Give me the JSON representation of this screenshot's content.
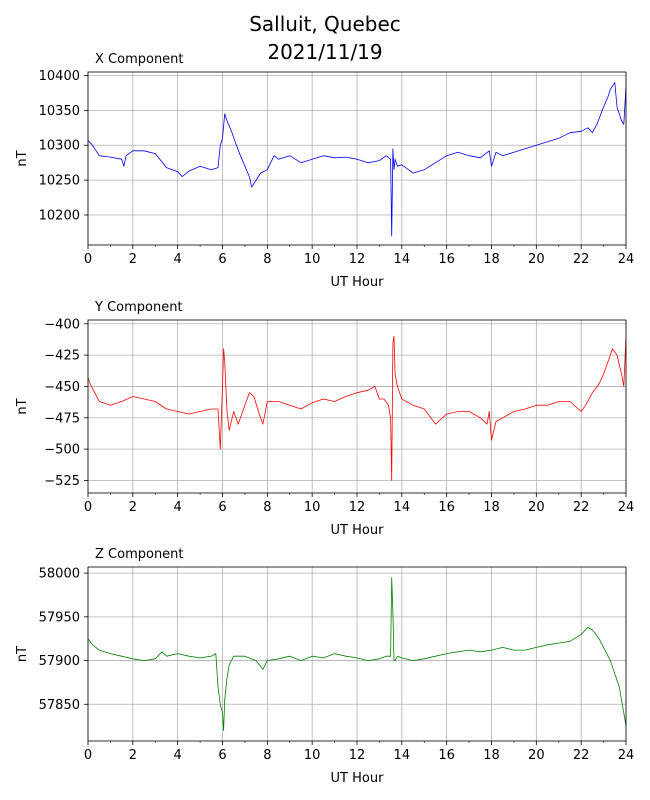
{
  "figure": {
    "title_line1": "Salluit, Quebec",
    "title_line2": "2021/11/19"
  },
  "chart_data": [
    {
      "type": "line",
      "title": "X Component",
      "xlabel": "UT Hour",
      "ylabel": "nT",
      "color": "#0000ff",
      "xlim": [
        0,
        24
      ],
      "ylim": [
        10157,
        10405
      ],
      "xticks": [
        0,
        2,
        4,
        6,
        8,
        10,
        12,
        14,
        16,
        18,
        20,
        22,
        24
      ],
      "yticks": [
        10200,
        10250,
        10300,
        10350,
        10400
      ],
      "grid": true,
      "x": [
        0,
        0.2,
        0.5,
        1.0,
        1.5,
        1.6,
        1.7,
        2.0,
        2.5,
        3.0,
        3.5,
        4.0,
        4.2,
        4.5,
        5.0,
        5.5,
        5.8,
        5.9,
        6.0,
        6.1,
        6.2,
        6.4,
        6.6,
        6.8,
        7.0,
        7.2,
        7.3,
        7.5,
        7.7,
        8.0,
        8.3,
        8.5,
        9.0,
        9.5,
        10.0,
        10.5,
        11.0,
        11.5,
        12.0,
        12.5,
        13.0,
        13.3,
        13.5,
        13.55,
        13.6,
        13.65,
        13.7,
        13.8,
        14.0,
        14.5,
        15.0,
        15.5,
        16.0,
        16.5,
        17.0,
        17.5,
        17.9,
        18.0,
        18.2,
        18.5,
        19.0,
        19.5,
        20.0,
        20.5,
        21.0,
        21.5,
        22.0,
        22.3,
        22.5,
        22.7,
        23.0,
        23.2,
        23.3,
        23.5,
        23.6,
        23.8,
        23.9,
        24.0
      ],
      "y": [
        10307,
        10300,
        10285,
        10283,
        10280,
        10270,
        10285,
        10292,
        10292,
        10288,
        10268,
        10262,
        10255,
        10263,
        10270,
        10265,
        10268,
        10300,
        10310,
        10345,
        10335,
        10320,
        10302,
        10285,
        10270,
        10255,
        10240,
        10250,
        10260,
        10265,
        10285,
        10280,
        10285,
        10275,
        10280,
        10285,
        10282,
        10283,
        10280,
        10275,
        10278,
        10285,
        10280,
        10170,
        10295,
        10265,
        10280,
        10270,
        10272,
        10260,
        10265,
        10275,
        10285,
        10290,
        10285,
        10282,
        10292,
        10270,
        10290,
        10285,
        10290,
        10295,
        10300,
        10305,
        10310,
        10318,
        10320,
        10325,
        10318,
        10330,
        10355,
        10370,
        10380,
        10390,
        10355,
        10335,
        10330,
        10385
      ]
    },
    {
      "type": "line",
      "title": "Y Component",
      "xlabel": "UT Hour",
      "ylabel": "nT",
      "color": "#ff0000",
      "xlim": [
        0,
        24
      ],
      "ylim": [
        -535,
        -397
      ],
      "xticks": [
        0,
        2,
        4,
        6,
        8,
        10,
        12,
        14,
        16,
        18,
        20,
        22,
        24
      ],
      "yticks": [
        -525,
        -500,
        -475,
        -450,
        -425,
        -400
      ],
      "grid": true,
      "x": [
        0,
        0.1,
        0.3,
        0.5,
        1.0,
        1.5,
        2.0,
        2.5,
        3.0,
        3.5,
        4.0,
        4.5,
        5.0,
        5.5,
        5.8,
        5.9,
        6.0,
        6.05,
        6.1,
        6.2,
        6.3,
        6.5,
        6.7,
        7.0,
        7.2,
        7.4,
        7.6,
        7.8,
        8.0,
        8.5,
        9.0,
        9.5,
        10.0,
        10.5,
        11.0,
        11.5,
        12.0,
        12.5,
        12.8,
        13.0,
        13.2,
        13.4,
        13.5,
        13.55,
        13.6,
        13.65,
        13.7,
        13.8,
        14.0,
        14.5,
        15.0,
        15.5,
        16.0,
        16.5,
        17.0,
        17.5,
        17.8,
        17.9,
        18.0,
        18.2,
        18.5,
        19.0,
        19.5,
        20.0,
        20.5,
        21.0,
        21.5,
        22.0,
        22.2,
        22.5,
        22.8,
        23.0,
        23.2,
        23.4,
        23.6,
        23.8,
        23.9,
        24.0
      ],
      "y": [
        -443,
        -448,
        -455,
        -462,
        -465,
        -462,
        -458,
        -460,
        -462,
        -468,
        -470,
        -472,
        -470,
        -468,
        -468,
        -500,
        -450,
        -420,
        -430,
        -470,
        -485,
        -470,
        -480,
        -465,
        -455,
        -458,
        -470,
        -480,
        -462,
        -462,
        -465,
        -468,
        -463,
        -460,
        -462,
        -458,
        -455,
        -453,
        -450,
        -460,
        -460,
        -465,
        -475,
        -525,
        -415,
        -410,
        -440,
        -450,
        -460,
        -465,
        -468,
        -480,
        -472,
        -470,
        -470,
        -475,
        -480,
        -470,
        -493,
        -478,
        -475,
        -470,
        -468,
        -465,
        -465,
        -462,
        -462,
        -470,
        -465,
        -455,
        -448,
        -440,
        -430,
        -420,
        -425,
        -440,
        -450,
        -410
      ]
    },
    {
      "type": "line",
      "title": "Z Component",
      "xlabel": "UT Hour",
      "ylabel": "nT",
      "color": "#008000",
      "xlim": [
        0,
        24
      ],
      "ylim": [
        57808,
        58007
      ],
      "xticks": [
        0,
        2,
        4,
        6,
        8,
        10,
        12,
        14,
        16,
        18,
        20,
        22,
        24
      ],
      "yticks": [
        57850,
        57900,
        57950,
        58000
      ],
      "grid": true,
      "x": [
        0,
        0.2,
        0.5,
        1.0,
        1.5,
        2.0,
        2.5,
        3.0,
        3.3,
        3.5,
        4.0,
        4.5,
        5.0,
        5.5,
        5.7,
        5.8,
        5.9,
        6.0,
        6.05,
        6.1,
        6.2,
        6.3,
        6.5,
        7.0,
        7.5,
        7.8,
        8.0,
        8.5,
        9.0,
        9.5,
        10.0,
        10.5,
        11.0,
        11.5,
        12.0,
        12.5,
        13.0,
        13.3,
        13.5,
        13.55,
        13.6,
        13.65,
        13.7,
        13.8,
        14.0,
        14.5,
        15.0,
        15.5,
        16.0,
        16.5,
        17.0,
        17.5,
        18.0,
        18.5,
        19.0,
        19.5,
        20.0,
        20.5,
        21.0,
        21.5,
        22.0,
        22.3,
        22.5,
        22.8,
        23.0,
        23.3,
        23.5,
        23.7,
        23.8,
        23.9,
        24.0
      ],
      "y": [
        57925,
        57918,
        57912,
        57908,
        57905,
        57902,
        57900,
        57902,
        57910,
        57905,
        57908,
        57905,
        57903,
        57905,
        57908,
        57870,
        57850,
        57840,
        57820,
        57855,
        57880,
        57895,
        57905,
        57905,
        57900,
        57890,
        57900,
        57902,
        57905,
        57900,
        57905,
        57903,
        57908,
        57905,
        57903,
        57900,
        57902,
        57905,
        57905,
        57995,
        57955,
        57900,
        57900,
        57905,
        57903,
        57900,
        57902,
        57905,
        57908,
        57910,
        57912,
        57910,
        57912,
        57915,
        57912,
        57912,
        57915,
        57918,
        57920,
        57922,
        57930,
        57938,
        57935,
        57925,
        57915,
        57900,
        57885,
        57870,
        57855,
        57840,
        57825
      ]
    }
  ]
}
